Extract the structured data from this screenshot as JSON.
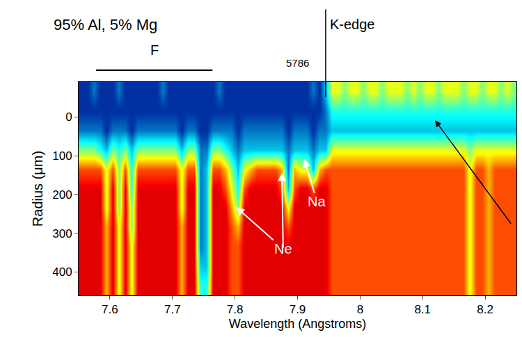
{
  "chart_data": {
    "type": "heatmap",
    "title": "95% Al, 5% Mg",
    "x_label": "Wavelength (Angstroms)",
    "y_label": "Radius (μm)",
    "xlim": [
      7.55,
      8.25
    ],
    "ylim": [
      460,
      -90
    ],
    "xticks": [
      7.6,
      7.7,
      7.8,
      7.9,
      8,
      8.1,
      8.2
    ],
    "yticks": [
      0,
      100,
      200,
      300,
      400
    ],
    "grid": false,
    "zlim": [
      0,
      10
    ],
    "edge": {
      "text": "K-edge",
      "x": 7.945
    },
    "band": {
      "text": "F",
      "x": [
        7.578,
        7.764
      ]
    },
    "shot": "5786",
    "annotations": [
      {
        "text": "Ne",
        "x": 7.877,
        "y": 340,
        "targets": [
          [
            7.8,
            230
          ],
          [
            7.875,
            140
          ]
        ]
      },
      {
        "text": "Na",
        "x": 7.931,
        "y": 218,
        "targets": [
          [
            7.91,
            105
          ]
        ]
      },
      {
        "targets": [
          [
            8.12,
            9
          ]
        ]
      }
    ],
    "x": [
      7.555,
      7.565,
      7.575,
      7.585,
      7.595,
      7.605,
      7.615,
      7.625,
      7.635,
      7.645,
      7.655,
      7.665,
      7.675,
      7.685,
      7.695,
      7.705,
      7.715,
      7.725,
      7.735,
      7.745,
      7.755,
      7.765,
      7.775,
      7.785,
      7.795,
      7.805,
      7.815,
      7.825,
      7.835,
      7.845,
      7.855,
      7.865,
      7.875,
      7.885,
      7.895,
      7.905,
      7.915,
      7.925,
      7.935,
      7.945,
      7.955,
      7.965,
      7.975,
      7.985,
      7.995,
      8.005,
      8.015,
      8.025,
      8.035,
      8.045,
      8.055,
      8.065,
      8.075,
      8.085,
      8.095,
      8.105,
      8.115,
      8.125,
      8.135,
      8.145,
      8.155,
      8.165,
      8.175,
      8.185,
      8.195,
      8.205,
      8.215,
      8.225,
      8.235,
      8.245
    ],
    "y": [
      -65,
      -15,
      35,
      85,
      135,
      185,
      235,
      285,
      335,
      385,
      435
    ],
    "z": [
      [
        1,
        1,
        2,
        1,
        1,
        1,
        2,
        1,
        1,
        1,
        1,
        1,
        1,
        2,
        1,
        1,
        1,
        1,
        1,
        1,
        1,
        1,
        2,
        1,
        1,
        1,
        1,
        1,
        1,
        1,
        1,
        1,
        1,
        1,
        1,
        1,
        1,
        2,
        1,
        3,
        6,
        6,
        5,
        6,
        6,
        5,
        6,
        6,
        5,
        6,
        6,
        6,
        5,
        6,
        5,
        6,
        6,
        5,
        6,
        6,
        6,
        5,
        6,
        6,
        5,
        6,
        6,
        5,
        6,
        5
      ],
      [
        1,
        1,
        1,
        1,
        1,
        1,
        1,
        1,
        1,
        1,
        1,
        1,
        1,
        1,
        1,
        1,
        1,
        1,
        1,
        1,
        1,
        1,
        1,
        1,
        1,
        1,
        1,
        1,
        1,
        1,
        1,
        1,
        1,
        1,
        1,
        1,
        1,
        1,
        1,
        2,
        4,
        4,
        4,
        4,
        4,
        4,
        4,
        4,
        4,
        4,
        4,
        4,
        4,
        4,
        4,
        4,
        4,
        4,
        4,
        4,
        4,
        4,
        4,
        4,
        4,
        4,
        4,
        4,
        4,
        4
      ],
      [
        2,
        2,
        2,
        2,
        1,
        2,
        2,
        2,
        1,
        2,
        2,
        2,
        2,
        2,
        2,
        2,
        1,
        2,
        2,
        1,
        1,
        2,
        2,
        2,
        2,
        1,
        2,
        2,
        2,
        2,
        2,
        2,
        2,
        1,
        2,
        2,
        2,
        1,
        2,
        2,
        3,
        3,
        3,
        3,
        3,
        3,
        3,
        3,
        3,
        3,
        3,
        3,
        3,
        3,
        3,
        3,
        3,
        3,
        3,
        3,
        3,
        3,
        3,
        3,
        3,
        3,
        3,
        3,
        3,
        3
      ],
      [
        5,
        5,
        5,
        4,
        3,
        5,
        4,
        5,
        3,
        5,
        5,
        5,
        5,
        5,
        5,
        5,
        3,
        5,
        5,
        2,
        2,
        5,
        5,
        4,
        3,
        2,
        3,
        3,
        3,
        3,
        3,
        3,
        3,
        2,
        3,
        3,
        3,
        2,
        3,
        3,
        6,
        6,
        6,
        6,
        6,
        6,
        6,
        6,
        6,
        6,
        6,
        6,
        6,
        6,
        6,
        6,
        6,
        6,
        6,
        6,
        6,
        6,
        5,
        6,
        6,
        6,
        6,
        6,
        6,
        6
      ],
      [
        8,
        8,
        8,
        8,
        6,
        8,
        5,
        8,
        4,
        8,
        8,
        8,
        8,
        8,
        8,
        8,
        6,
        8,
        8,
        2,
        3,
        8,
        8,
        7,
        5,
        3,
        6,
        7,
        8,
        8,
        8,
        8,
        7,
        2,
        7,
        6,
        6,
        3,
        7,
        8,
        8,
        8,
        8,
        8,
        8,
        8,
        8,
        8,
        8,
        8,
        8,
        8,
        8,
        8,
        8,
        8,
        8,
        8,
        8,
        8,
        8,
        8,
        6,
        8,
        8,
        7,
        8,
        8,
        8,
        8
      ],
      [
        9,
        9,
        9,
        9,
        6,
        9,
        5,
        9,
        4,
        9,
        9,
        9,
        9,
        9,
        9,
        9,
        6,
        9,
        9,
        2,
        3,
        9,
        9,
        8,
        6,
        4,
        8,
        9,
        9,
        9,
        9,
        9,
        8,
        3,
        8,
        9,
        9,
        8,
        9,
        9,
        8,
        8,
        8,
        8,
        8,
        8,
        8,
        8,
        8,
        8,
        8,
        8,
        8,
        8,
        8,
        8,
        8,
        8,
        8,
        8,
        8,
        8,
        6,
        8,
        8,
        7,
        8,
        8,
        8,
        8
      ],
      [
        9,
        9,
        9,
        9,
        6,
        9,
        5,
        9,
        5,
        9,
        9,
        9,
        9,
        9,
        9,
        9,
        6,
        9,
        9,
        2,
        3,
        9,
        9,
        9,
        7,
        5,
        9,
        9,
        9,
        9,
        9,
        9,
        9,
        6,
        9,
        9,
        9,
        9,
        9,
        9,
        8,
        8,
        8,
        8,
        8,
        8,
        8,
        8,
        8,
        8,
        8,
        8,
        8,
        8,
        8,
        8,
        8,
        8,
        8,
        8,
        8,
        8,
        6,
        8,
        8,
        7,
        8,
        8,
        8,
        8
      ],
      [
        9,
        9,
        9,
        9,
        7,
        9,
        6,
        9,
        5,
        9,
        9,
        9,
        9,
        9,
        9,
        9,
        7,
        9,
        9,
        2,
        3,
        9,
        9,
        9,
        8,
        7,
        9,
        9,
        9,
        9,
        9,
        9,
        9,
        8,
        9,
        9,
        9,
        9,
        9,
        9,
        8,
        8,
        8,
        8,
        8,
        8,
        8,
        8,
        8,
        8,
        8,
        8,
        8,
        8,
        8,
        8,
        8,
        8,
        8,
        8,
        8,
        8,
        6,
        8,
        8,
        7,
        8,
        8,
        8,
        8
      ],
      [
        9,
        9,
        9,
        9,
        7,
        9,
        6,
        9,
        6,
        9,
        9,
        9,
        9,
        9,
        9,
        9,
        7,
        9,
        9,
        2,
        3,
        9,
        9,
        9,
        8,
        8,
        9,
        9,
        9,
        9,
        9,
        9,
        9,
        9,
        9,
        9,
        9,
        9,
        9,
        9,
        8,
        8,
        8,
        8,
        8,
        8,
        8,
        8,
        8,
        8,
        8,
        8,
        8,
        8,
        8,
        8,
        8,
        8,
        8,
        8,
        8,
        8,
        6,
        8,
        8,
        7,
        8,
        8,
        8,
        8
      ],
      [
        9,
        9,
        9,
        9,
        7,
        9,
        6,
        9,
        6,
        9,
        9,
        9,
        9,
        9,
        9,
        9,
        7,
        9,
        9,
        3,
        3,
        9,
        9,
        9,
        8,
        8,
        9,
        9,
        9,
        9,
        9,
        9,
        9,
        9,
        9,
        9,
        9,
        9,
        9,
        9,
        8,
        8,
        8,
        8,
        8,
        8,
        8,
        8,
        8,
        8,
        8,
        8,
        8,
        8,
        8,
        8,
        8,
        8,
        8,
        8,
        8,
        8,
        6,
        8,
        8,
        7,
        8,
        8,
        8,
        8
      ],
      [
        9,
        9,
        9,
        9,
        7,
        9,
        6,
        9,
        6,
        9,
        9,
        9,
        9,
        9,
        9,
        9,
        7,
        9,
        9,
        4,
        4,
        9,
        9,
        9,
        8,
        8,
        9,
        9,
        9,
        9,
        9,
        9,
        9,
        9,
        9,
        9,
        9,
        9,
        9,
        9,
        8,
        8,
        8,
        8,
        8,
        8,
        8,
        8,
        8,
        8,
        8,
        8,
        8,
        8,
        8,
        8,
        8,
        8,
        8,
        8,
        8,
        8,
        6,
        8,
        8,
        7,
        8,
        8,
        8,
        8
      ]
    ]
  }
}
